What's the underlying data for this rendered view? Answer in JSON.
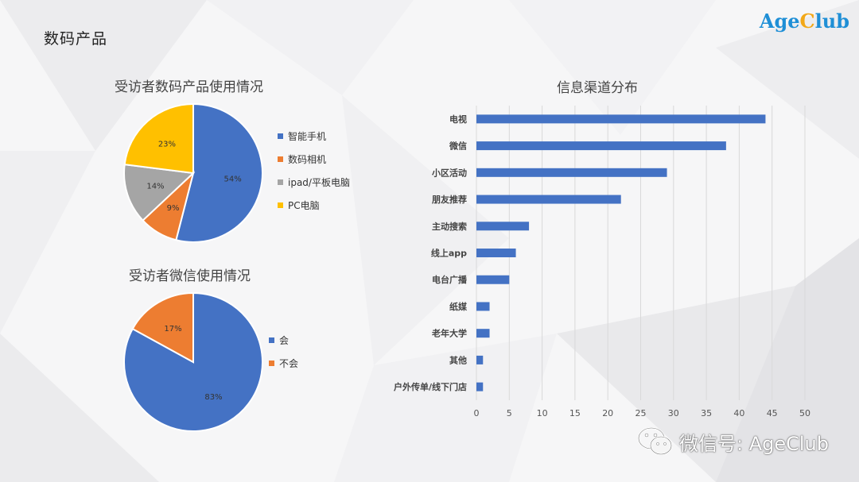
{
  "header": {
    "title": "数码产品",
    "logo": {
      "part1": "Age",
      "part2": "C",
      "part3": "lub"
    }
  },
  "colors": {
    "blue": "#4472c4",
    "orange": "#ed7d31",
    "gray": "#a5a5a5",
    "yellow": "#ffc000",
    "logo_blue": "#1f8fd6",
    "logo_orange": "#f2a818"
  },
  "watermark": {
    "icon": "wechat-icon",
    "text": "微信号: AgeClub"
  },
  "chart_data": [
    {
      "type": "pie",
      "title": "受访者数码产品使用情况",
      "legend_position": "right",
      "slices": [
        {
          "label": "智能手机",
          "value": 54,
          "display": "54%",
          "color": "#4472c4"
        },
        {
          "label": "数码相机",
          "value": 9,
          "display": "9%",
          "color": "#ed7d31"
        },
        {
          "label": "ipad/平板电脑",
          "value": 14,
          "display": "14%",
          "color": "#a5a5a5"
        },
        {
          "label": "PC电脑",
          "value": 23,
          "display": "23%",
          "color": "#ffc000"
        }
      ]
    },
    {
      "type": "pie",
      "title": "受访者微信使用情况",
      "legend_position": "right",
      "slices": [
        {
          "label": "会",
          "value": 83,
          "display": "83%",
          "color": "#4472c4"
        },
        {
          "label": "不会",
          "value": 17,
          "display": "17%",
          "color": "#ed7d31"
        }
      ]
    },
    {
      "type": "bar",
      "orientation": "horizontal",
      "title": "信息渠道分布",
      "categories": [
        "电视",
        "微信",
        "小区活动",
        "朋友推荐",
        "主动搜索",
        "线上app",
        "电台广播",
        "纸媒",
        "老年大学",
        "其他",
        "户外传单/线下门店"
      ],
      "values": [
        44,
        38,
        29,
        22,
        8,
        6,
        5,
        2,
        2,
        1,
        1
      ],
      "xlim": [
        0,
        50
      ],
      "xticks": [
        0,
        5,
        10,
        15,
        20,
        25,
        30,
        35,
        40,
        45,
        50
      ],
      "grid": true,
      "color": "#4472c4"
    }
  ]
}
